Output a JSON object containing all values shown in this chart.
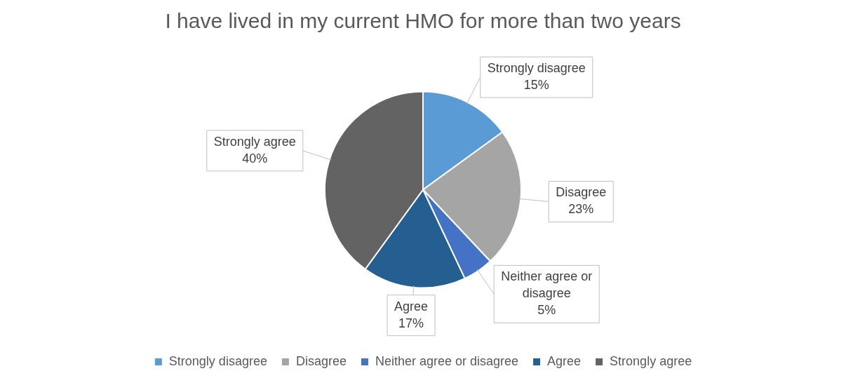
{
  "chart_data": {
    "type": "pie",
    "title": "I have lived in my current HMO for more than two years",
    "categories": [
      "Strongly disagree",
      "Disagree",
      "Neither agree or disagree",
      "Agree",
      "Strongly agree"
    ],
    "values": [
      15,
      23,
      5,
      17,
      40
    ],
    "colors": [
      "#5b9bd5",
      "#a5a5a5",
      "#4472c4",
      "#255e91",
      "#636363"
    ],
    "value_labels": [
      "15%",
      "23%",
      "5%",
      "17%",
      "40%"
    ],
    "legend": "bottom"
  }
}
